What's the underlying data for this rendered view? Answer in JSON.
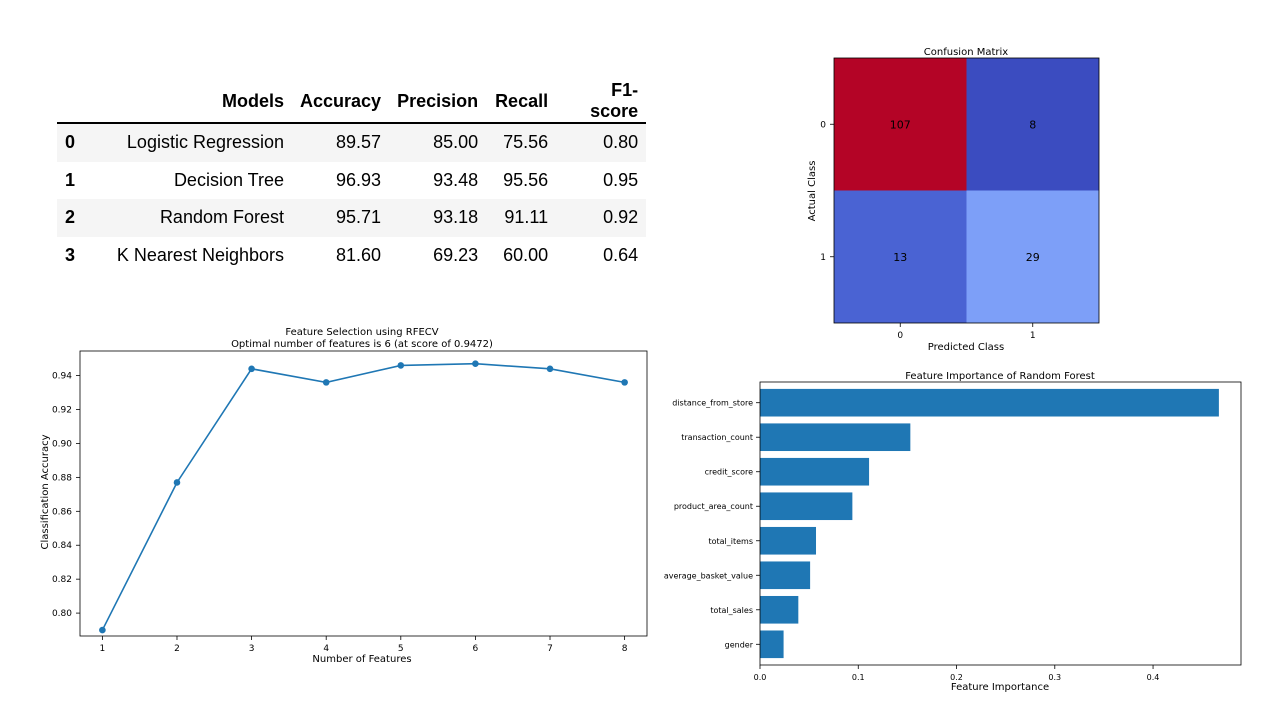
{
  "table": {
    "columns": [
      "",
      "Models",
      "Accuracy",
      "Precision",
      "Recall",
      "F1-score"
    ],
    "rows": [
      [
        "0",
        "Logistic Regression",
        "89.57",
        "85.00",
        "75.56",
        "0.80"
      ],
      [
        "1",
        "Decision Tree",
        "96.93",
        "93.48",
        "95.56",
        "0.95"
      ],
      [
        "2",
        "Random Forest",
        "95.71",
        "93.18",
        "91.11",
        "0.92"
      ],
      [
        "3",
        "K Nearest Neighbors",
        "81.60",
        "69.23",
        "60.00",
        "0.64"
      ]
    ]
  },
  "chart_data": [
    {
      "type": "heatmap",
      "title": "Confusion Matrix",
      "xlabel": "Predicted Class",
      "ylabel": "Actual Class",
      "x_ticks": [
        "0",
        "1"
      ],
      "y_ticks": [
        "0",
        "1"
      ],
      "values": [
        [
          107,
          8
        ],
        [
          13,
          29
        ]
      ],
      "colors": [
        [
          "#b40426",
          "#3b4cc0"
        ],
        [
          "#4a63d3",
          "#7d9ff8"
        ]
      ]
    },
    {
      "type": "line",
      "title": "Feature Selection using RFECV",
      "subtitle": "Optimal number of features is 6 (at score of 0.9472)",
      "xlabel": "Number of Features",
      "ylabel": "Classification Accuracy",
      "x": [
        1,
        2,
        3,
        4,
        5,
        6,
        7,
        8
      ],
      "y": [
        0.79,
        0.877,
        0.944,
        0.936,
        0.946,
        0.947,
        0.944,
        0.936
      ],
      "xlim": [
        0.7,
        8.3
      ],
      "ylim": [
        0.7865,
        0.9545
      ],
      "x_ticks": [
        1,
        2,
        3,
        4,
        5,
        6,
        7,
        8
      ],
      "y_ticks": [
        "0.80",
        "0.82",
        "0.84",
        "0.86",
        "0.88",
        "0.90",
        "0.92",
        "0.94"
      ],
      "color": "#1f77b4"
    },
    {
      "type": "bar",
      "orientation": "horizontal",
      "title": "Feature Importance of Random Forest",
      "xlabel": "Feature Importance",
      "categories": [
        "distance_from_store",
        "transaction_count",
        "credit_score",
        "product_area_count",
        "total_items",
        "average_basket_value",
        "total_sales",
        "gender"
      ],
      "values": [
        0.467,
        0.153,
        0.111,
        0.094,
        0.057,
        0.051,
        0.039,
        0.024
      ],
      "xlim": [
        0,
        0.4895
      ],
      "x_ticks": [
        "0.0",
        "0.1",
        "0.2",
        "0.3",
        "0.4"
      ],
      "color": "#1f77b4"
    }
  ]
}
